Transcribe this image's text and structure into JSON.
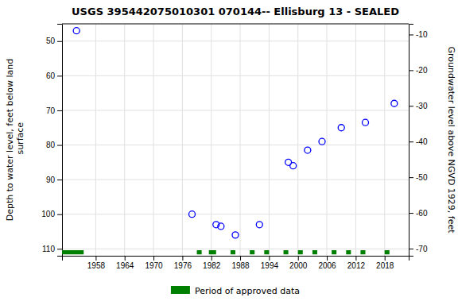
{
  "chart_data": {
    "type": "scatter",
    "title": "USGS 395442075010301 070144-- Ellisburg 13 - SEALED",
    "ylabel": "Depth to water level, feet below land\n surface",
    "y2label": "Groundwater level above NGVD 1929, feet",
    "xlim": [
      1951,
      2023
    ],
    "xticks": [
      1958,
      1964,
      1970,
      1976,
      1982,
      1988,
      1994,
      2000,
      2006,
      2012,
      2018
    ],
    "ylim": [
      112,
      45
    ],
    "yticks": [
      50,
      60,
      70,
      80,
      90,
      100,
      110
    ],
    "y2lim": [
      -72,
      -7
    ],
    "y2ticks": [
      -10,
      -20,
      -30,
      -40,
      -50,
      -60,
      -70
    ],
    "grid": true,
    "legend": "bottom",
    "series": [
      {
        "type": "scatter",
        "marker": "open-circle",
        "color": "blue",
        "x": [
          1954,
          1978,
          1983,
          1984,
          1987,
          1992,
          1998,
          1999,
          2002,
          2005,
          2009,
          2014,
          2020
        ],
        "values": [
          47,
          100,
          103,
          103.5,
          106,
          103,
          85,
          86,
          81.5,
          79,
          75,
          73.5,
          68
        ]
      },
      {
        "type": "span",
        "name": "Period of approved data",
        "color": "#008000",
        "spans": [
          [
            1951,
            1955.5
          ],
          [
            1979,
            1980
          ],
          [
            1981.5,
            1983
          ],
          [
            1986,
            1987
          ],
          [
            1990,
            1991
          ],
          [
            1993,
            1994
          ],
          [
            1997,
            1998
          ],
          [
            2000,
            2001
          ],
          [
            2003,
            2004
          ],
          [
            2007,
            2008
          ],
          [
            2010,
            2011
          ],
          [
            2013,
            2014
          ],
          [
            2018,
            2019
          ]
        ],
        "y": 111.0,
        "height": 1.2
      }
    ]
  }
}
